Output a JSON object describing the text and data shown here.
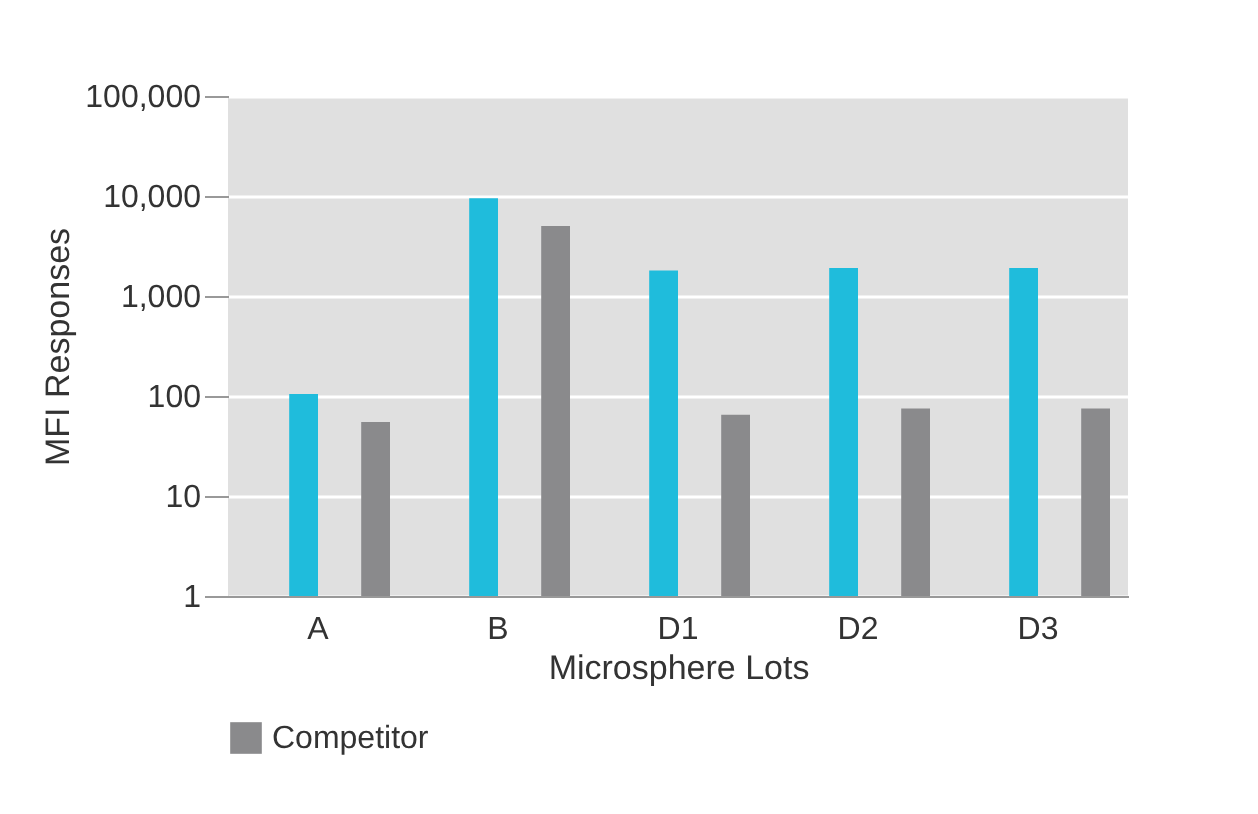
{
  "chart_data": {
    "type": "bar",
    "xlabel": "Microsphere Lots",
    "ylabel": "MFI Responses",
    "categories": [
      "A",
      "B",
      "D1",
      "D2",
      "D3"
    ],
    "series": [
      {
        "color": "#1fbcdc",
        "values": [
          105,
          9500,
          1800,
          1900,
          1900
        ]
      },
      {
        "name": "Competitor",
        "color": "#8a8a8c",
        "values": [
          55,
          5000,
          65,
          75,
          75
        ]
      }
    ],
    "log": "y",
    "ylim": [
      1,
      100000
    ],
    "yticks": [
      {
        "value": 1,
        "label": "1"
      },
      {
        "value": 10,
        "label": "10"
      },
      {
        "value": 100,
        "label": "100"
      },
      {
        "value": 1000,
        "label": "1,000"
      },
      {
        "value": 10000,
        "label": "10,000"
      },
      {
        "value": 100000,
        "label": "100,000"
      }
    ],
    "grid": "y",
    "legend": "bottom"
  }
}
